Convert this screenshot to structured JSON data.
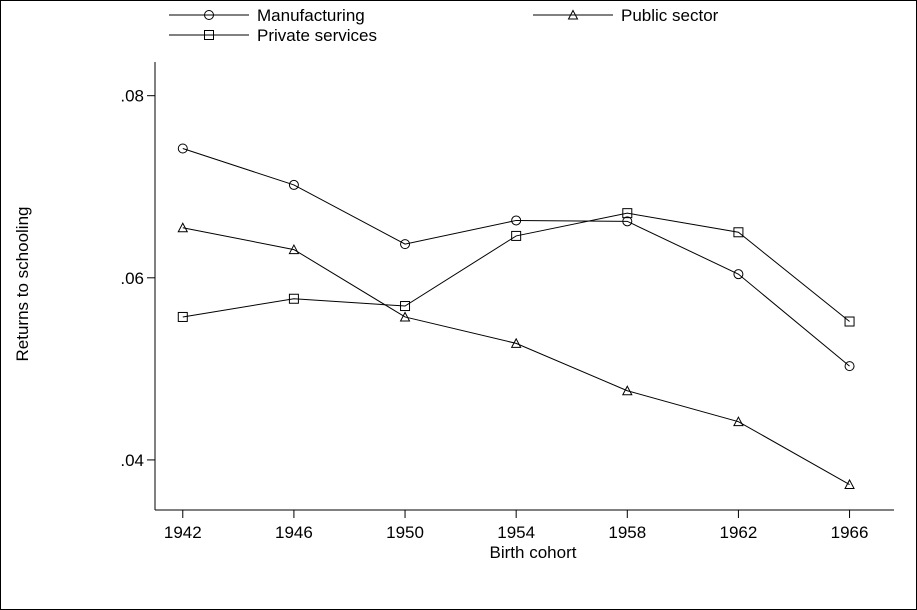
{
  "chart_data": {
    "type": "line",
    "xlabel": "Birth cohort",
    "ylabel": "Returns to schooling",
    "x": [
      1942,
      1946,
      1950,
      1954,
      1958,
      1962,
      1966
    ],
    "xticks": [
      1942,
      1946,
      1950,
      1954,
      1958,
      1962,
      1966
    ],
    "xtick_labels": [
      "1942",
      "1946",
      "1950",
      "1954",
      "1958",
      "1962",
      "1966"
    ],
    "yticks": [
      0.04,
      0.06,
      0.08
    ],
    "ytick_labels": [
      ".04",
      ".06",
      ".08"
    ],
    "xlim": [
      1941,
      1967.6
    ],
    "ylim": [
      0.0345,
      0.0837
    ],
    "grid": false,
    "legend_position": "top",
    "series": [
      {
        "name": "Manufacturing",
        "marker": "circle",
        "values": [
          0.0742,
          0.0702,
          0.0637,
          0.0663,
          0.0662,
          0.0604,
          0.0503
        ]
      },
      {
        "name": "Public sector",
        "marker": "triangle",
        "values": [
          0.0655,
          0.0631,
          0.0557,
          0.0528,
          0.0476,
          0.0442,
          0.0373
        ]
      },
      {
        "name": "Private services",
        "marker": "square",
        "values": [
          0.0557,
          0.0577,
          0.0569,
          0.0646,
          0.0671,
          0.065,
          0.0552
        ]
      }
    ]
  }
}
